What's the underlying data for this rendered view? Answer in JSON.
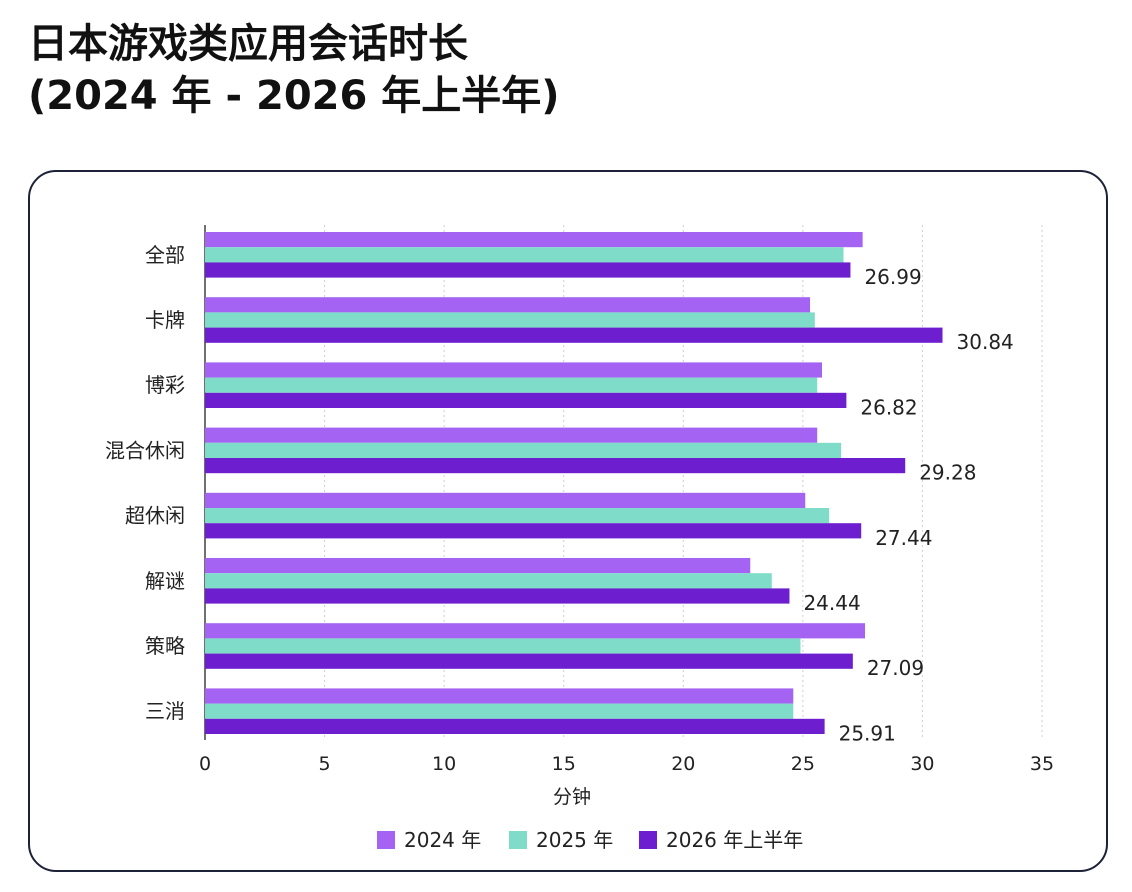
{
  "page": {
    "title_line1": "日本游戏类应用会话时长",
    "title_line2": "(2024 年 - 2026 年上半年)"
  },
  "chart_data": {
    "type": "bar",
    "orientation": "horizontal",
    "categories": [
      "全部",
      "卡牌",
      "博彩",
      "混合休闲",
      "超休闲",
      "解谜",
      "策略",
      "三消"
    ],
    "series": [
      {
        "name": "2024 年",
        "color": "#a463f2",
        "values": [
          27.5,
          25.3,
          25.8,
          25.6,
          25.1,
          22.8,
          27.6,
          24.6
        ]
      },
      {
        "name": "2025 年",
        "color": "#7fdcc8",
        "values": [
          26.7,
          25.5,
          25.6,
          26.6,
          26.1,
          23.7,
          24.9,
          24.6
        ]
      },
      {
        "name": "2026 年上半年",
        "color": "#6d1fcf",
        "values": [
          26.99,
          30.84,
          26.82,
          29.28,
          27.44,
          24.44,
          27.09,
          25.91
        ]
      }
    ],
    "data_labels": [
      "26.99",
      "30.84",
      "26.82",
      "29.28",
      "27.44",
      "24.44",
      "27.09",
      "25.91"
    ],
    "xlabel": "分钟",
    "ylabel": "",
    "xlim": [
      0,
      35
    ],
    "xticks": [
      "0",
      "5",
      "10",
      "15",
      "20",
      "25",
      "30",
      "35"
    ],
    "grid": "vertical dotted",
    "legend": "bottom-center"
  }
}
